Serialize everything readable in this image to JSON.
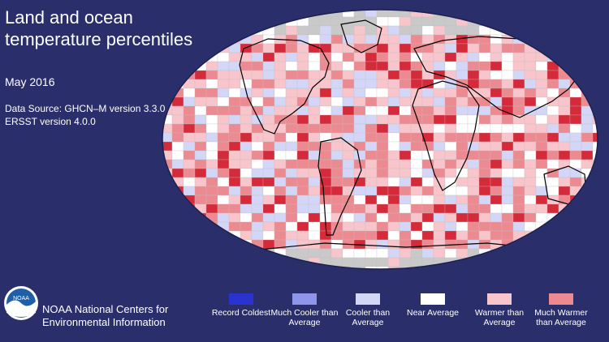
{
  "title": "Land and ocean temperature percentiles",
  "subtitle": "May 2016",
  "source": "Data Source: GHCN–M version 3.3.0 & ERSST version 4.0.0",
  "organization": "NOAA National Centers for Environmental Information",
  "logo_text": "NOAA",
  "legend": [
    {
      "label": "Record Coldest",
      "color": "#2a33cf"
    },
    {
      "label": "Much Cooler than Average",
      "color": "#8f95e8"
    },
    {
      "label": "Cooler than Average",
      "color": "#d3d6f7"
    },
    {
      "label": "Near Average",
      "color": "#ffffff"
    },
    {
      "label": "Warmer than Average",
      "color": "#f7c5cb"
    },
    {
      "label": "Much Warmer than Average",
      "color": "#ec8a92"
    }
  ],
  "colors": {
    "background": "#2a2f6b",
    "no_data": "#c9c9c9",
    "record_warmest": "#d42a3a",
    "coastline": "#000000"
  }
}
